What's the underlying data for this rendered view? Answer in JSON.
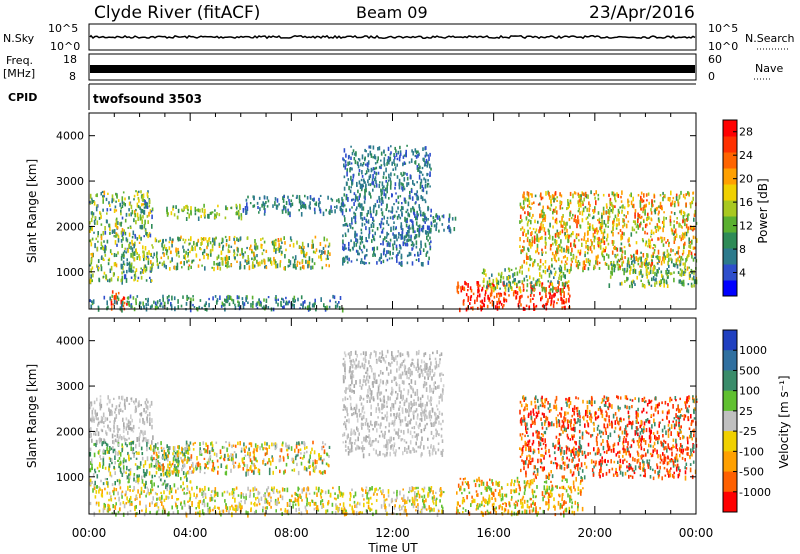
{
  "header": {
    "station": "Clyde River (fitACF)",
    "beam": "Beam 09",
    "date": "23/Apr/2016"
  },
  "noise_panel": {
    "left_label": "N.Sky",
    "left_ticks": [
      "10^5",
      "10^0"
    ],
    "right_label": "N.Search",
    "right_ticks": [
      "10^5",
      "10^0"
    ]
  },
  "freq_panel": {
    "left_label_line1": "Freq.",
    "left_label_line2": "[MHz]",
    "left_ticks": [
      "18",
      "8"
    ],
    "right_label": "Nave",
    "right_ticks": [
      "60",
      "0"
    ]
  },
  "cpid_panel": {
    "label": "CPID",
    "value": "twofsound 3503"
  },
  "chart_data": [
    {
      "type": "heatmap",
      "name": "power",
      "xlabel": "Time UT",
      "ylabel": "Slant Range [km]",
      "xlim": [
        0,
        24
      ],
      "ylim": [
        180,
        4500
      ],
      "y_ticks": [
        1000,
        2000,
        3000,
        4000
      ],
      "x_ticks": [
        "00:00",
        "04:00",
        "08:00",
        "12:00",
        "16:00",
        "20:00",
        "00:00"
      ],
      "colorbar": {
        "label": "Power [dB]",
        "ticks": [
          "4",
          "8",
          "12",
          "16",
          "20",
          "24",
          "28"
        ],
        "tick_values": [
          4,
          8,
          12,
          16,
          20,
          24,
          28
        ],
        "range": [
          0,
          30
        ],
        "colors": [
          "#0000ff",
          "#2e4ecc",
          "#2c7a8c",
          "#2e8b57",
          "#5ab030",
          "#a8c820",
          "#f0d000",
          "#ffa000",
          "#ff6400",
          "#ff3000",
          "#ff0000"
        ]
      },
      "regions": [
        {
          "t": [
            0.0,
            2.5
          ],
          "r": [
            800,
            2800
          ],
          "v": [
            4,
            20
          ]
        },
        {
          "t": [
            0.8,
            1.5
          ],
          "r": [
            200,
            600
          ],
          "v": [
            22,
            30
          ]
        },
        {
          "t": [
            2.5,
            9.5
          ],
          "r": [
            1100,
            1800
          ],
          "v": [
            6,
            22
          ]
        },
        {
          "t": [
            3.0,
            6.0
          ],
          "r": [
            2200,
            2500
          ],
          "v": [
            8,
            18
          ]
        },
        {
          "t": [
            6.0,
            10.0
          ],
          "r": [
            2300,
            2700
          ],
          "v": [
            4,
            10
          ]
        },
        {
          "t": [
            0.0,
            10.0
          ],
          "r": [
            200,
            500
          ],
          "v": [
            4,
            12
          ]
        },
        {
          "t": [
            10.0,
            13.5
          ],
          "r": [
            1200,
            3800
          ],
          "v": [
            4,
            10
          ]
        },
        {
          "t": [
            12.5,
            14.5
          ],
          "r": [
            1900,
            2300
          ],
          "v": [
            4,
            10
          ]
        },
        {
          "t": [
            14.5,
            19.0
          ],
          "r": [
            200,
            800
          ],
          "v": [
            22,
            30
          ]
        },
        {
          "t": [
            15.5,
            19.0
          ],
          "r": [
            600,
            1100
          ],
          "v": [
            6,
            18
          ]
        },
        {
          "t": [
            17.0,
            24.0
          ],
          "r": [
            1100,
            2800
          ],
          "v": [
            10,
            26
          ]
        },
        {
          "t": [
            20.5,
            24.0
          ],
          "r": [
            700,
            1400
          ],
          "v": [
            6,
            18
          ]
        }
      ]
    },
    {
      "type": "heatmap",
      "name": "velocity",
      "xlabel": "Time UT",
      "ylabel": "Slant Range [km]",
      "xlim": [
        0,
        24
      ],
      "ylim": [
        180,
        4500
      ],
      "y_ticks": [
        1000,
        2000,
        3000,
        4000
      ],
      "x_ticks": [
        "00:00",
        "04:00",
        "08:00",
        "12:00",
        "16:00",
        "20:00",
        "00:00"
      ],
      "colorbar": {
        "label": "Velocity [m s⁻¹]",
        "ticks": [
          "1000",
          "500",
          "100",
          "25",
          "-25",
          "-100",
          "-500",
          "-1000"
        ],
        "colors": [
          "#2040c0",
          "#3070a0",
          "#3a8c6a",
          "#60c030",
          "#c0c0c0",
          "#f0d000",
          "#ffa000",
          "#ff6000",
          "#ff0000"
        ]
      },
      "regions": [
        {
          "t": [
            0.0,
            2.5
          ],
          "r": [
            1800,
            2800
          ],
          "v": "gray"
        },
        {
          "t": [
            0.0,
            4.0
          ],
          "r": [
            800,
            1800
          ],
          "v": "green"
        },
        {
          "t": [
            2.5,
            9.5
          ],
          "r": [
            1100,
            1800
          ],
          "v": "mixed"
        },
        {
          "t": [
            0.0,
            14.0
          ],
          "r": [
            200,
            800
          ],
          "v": "yellow"
        },
        {
          "t": [
            10.0,
            14.0
          ],
          "r": [
            1500,
            3800
          ],
          "v": "gray"
        },
        {
          "t": [
            14.5,
            19.5
          ],
          "r": [
            200,
            1000
          ],
          "v": "orange"
        },
        {
          "t": [
            17.0,
            24.0
          ],
          "r": [
            1000,
            2800
          ],
          "v": "red"
        }
      ]
    }
  ]
}
